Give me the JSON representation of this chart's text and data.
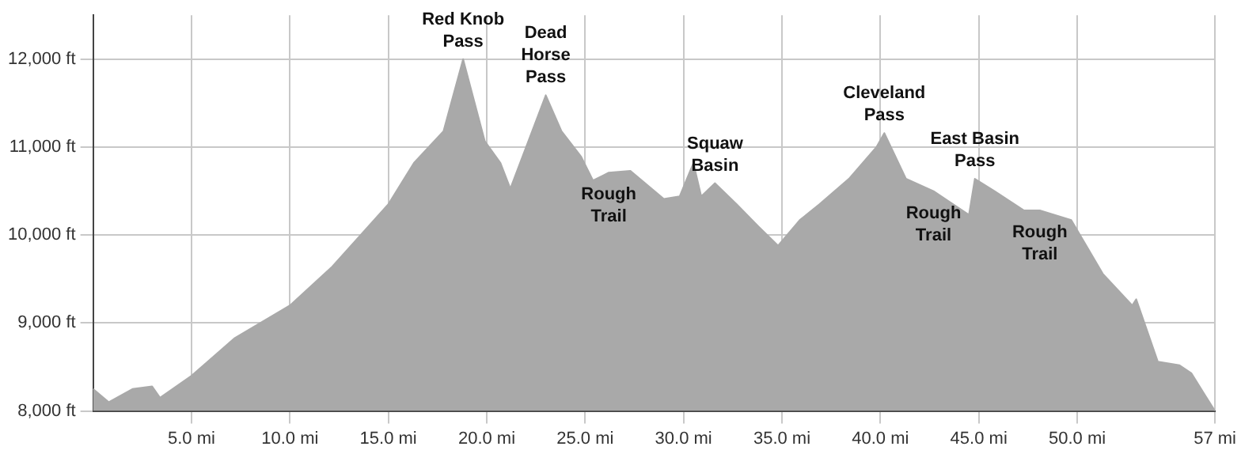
{
  "chart_data": {
    "type": "area",
    "color": "#a9a9a9",
    "x": [
      0,
      0.8,
      2,
      3,
      3.4,
      5,
      7.2,
      10,
      12.1,
      15,
      16.3,
      17.8,
      18.8,
      19.9,
      20.7,
      21.2,
      23,
      23.8,
      24.8,
      25.4,
      26.2,
      27.3,
      29,
      29.8,
      30.5,
      30.9,
      31.6,
      32.7,
      33.8,
      34.8,
      35.9,
      36.9,
      38.4,
      39.8,
      40.2,
      41.3,
      42.7,
      44.5,
      44.8,
      45.8,
      47.3,
      48.1,
      49.7,
      51.3,
      52.8,
      53,
      54.1,
      55.2,
      55.8,
      57
    ],
    "values": [
      8250,
      8100,
      8250,
      8280,
      8150,
      8400,
      8830,
      9200,
      9630,
      10350,
      10820,
      11180,
      12000,
      11070,
      10820,
      10530,
      11590,
      11180,
      10890,
      10620,
      10710,
      10730,
      10410,
      10440,
      10820,
      10440,
      10590,
      10350,
      10100,
      9880,
      10170,
      10350,
      10640,
      11000,
      11160,
      10640,
      10500,
      10230,
      10640,
      10500,
      10280,
      10280,
      10170,
      9560,
      9200,
      9270,
      8560,
      8520,
      8430,
      8000
    ],
    "xlim": [
      0,
      57
    ],
    "xticks": [
      {
        "value": 5,
        "label": "5.0 mi"
      },
      {
        "value": 10,
        "label": "10.0 mi"
      },
      {
        "value": 15,
        "label": "15.0 mi"
      },
      {
        "value": 20,
        "label": "20.0 mi"
      },
      {
        "value": 25,
        "label": "25.0 mi"
      },
      {
        "value": 30,
        "label": "30.0 mi"
      },
      {
        "value": 35,
        "label": "35.0 mi"
      },
      {
        "value": 40,
        "label": "40.0 mi"
      },
      {
        "value": 45,
        "label": "45.0 mi"
      },
      {
        "value": 50,
        "label": "50.0 mi"
      },
      {
        "value": 57,
        "label": "57 mi"
      }
    ],
    "ylim": [
      8000,
      12500
    ],
    "yticks": [
      {
        "value": 8000,
        "label": "8,000 ft"
      },
      {
        "value": 9000,
        "label": "9,000 ft"
      },
      {
        "value": 10000,
        "label": "10,000 ft"
      },
      {
        "value": 11000,
        "label": "11,000 ft"
      },
      {
        "value": 12000,
        "label": "12,000 ft"
      }
    ],
    "grid": true,
    "marker": "none",
    "annotations": [
      {
        "text": "Red Knob Pass",
        "x": 18.8,
        "y": 12000
      },
      {
        "text": "Dead Horse Pass",
        "x": 23,
        "y": 11590
      },
      {
        "text": "Rough Trail",
        "x": 26.2,
        "y": 10710
      },
      {
        "text": "Squaw Basin",
        "x": 31.6,
        "y": 10590
      },
      {
        "text": "Cleveland Pass",
        "x": 40.2,
        "y": 11160
      },
      {
        "text": "Rough Trail",
        "x": 42.7,
        "y": 10500
      },
      {
        "text": "East Basin Pass",
        "x": 44.8,
        "y": 10640
      },
      {
        "text": "Rough Trail",
        "x": 48.1,
        "y": 10280
      }
    ]
  }
}
